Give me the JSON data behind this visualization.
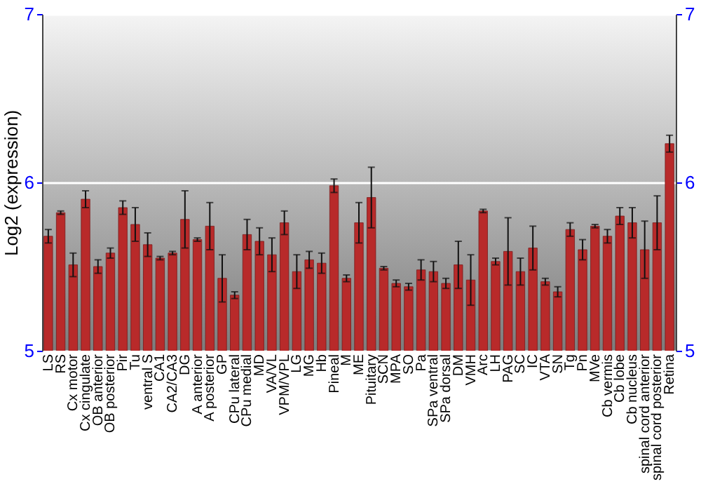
{
  "chart_data": {
    "type": "bar",
    "ylabel": "Log2 (expression)",
    "categories": [
      "LS",
      "RS",
      "Cx motor",
      "Cx cingulate",
      "OB anterior",
      "OB posterior",
      "Pir",
      "Tu",
      "ventral S",
      "CA1",
      "CA2/CA3",
      "DG",
      "A anterior",
      "A posterior",
      "GP",
      "CPu lateral",
      "CPu medial",
      "MD",
      "VA/VL",
      "VPM/VPL",
      "LG",
      "MG",
      "Hb",
      "Pineal",
      "M",
      "ME",
      "Pituitary",
      "SCN",
      "MPA",
      "SO",
      "Pa",
      "SPa ventral",
      "SPa dorsal",
      "DM",
      "VMH",
      "Arc",
      "LH",
      "PAG",
      "SC",
      "IC",
      "VTA",
      "SN",
      "Tg",
      "Pn",
      "MVe",
      "Cb vermis",
      "Cb lobe",
      "Cb nucleus",
      "spinal cord anterior",
      "spinal cord posterior",
      "Retina"
    ],
    "values": [
      5.68,
      5.82,
      5.51,
      5.9,
      5.5,
      5.58,
      5.85,
      5.75,
      5.63,
      5.55,
      5.58,
      5.78,
      5.66,
      5.74,
      5.43,
      5.33,
      5.69,
      5.65,
      5.57,
      5.76,
      5.47,
      5.54,
      5.52,
      5.98,
      5.43,
      5.76,
      5.91,
      5.49,
      5.4,
      5.38,
      5.48,
      5.47,
      5.4,
      5.51,
      5.42,
      5.83,
      5.53,
      5.59,
      5.47,
      5.61,
      5.41,
      5.35,
      5.72,
      5.6,
      5.74,
      5.68,
      5.8,
      5.76,
      5.6,
      5.76,
      6.23
    ],
    "errors": [
      0.04,
      0.01,
      0.07,
      0.05,
      0.04,
      0.03,
      0.04,
      0.1,
      0.07,
      0.01,
      0.01,
      0.17,
      0.01,
      0.14,
      0.14,
      0.02,
      0.09,
      0.08,
      0.1,
      0.07,
      0.1,
      0.05,
      0.06,
      0.04,
      0.02,
      0.12,
      0.18,
      0.01,
      0.02,
      0.02,
      0.06,
      0.06,
      0.03,
      0.14,
      0.15,
      0.01,
      0.02,
      0.2,
      0.08,
      0.13,
      0.02,
      0.03,
      0.04,
      0.06,
      0.01,
      0.04,
      0.05,
      0.09,
      0.17,
      0.16,
      0.05
    ],
    "color": "#b82a2a",
    "ylim": [
      5,
      7
    ],
    "yticks": [
      5,
      6,
      7
    ],
    "y2lim": [
      5,
      7
    ],
    "y2ticks": [
      5,
      6,
      7
    ],
    "grid": "y"
  }
}
